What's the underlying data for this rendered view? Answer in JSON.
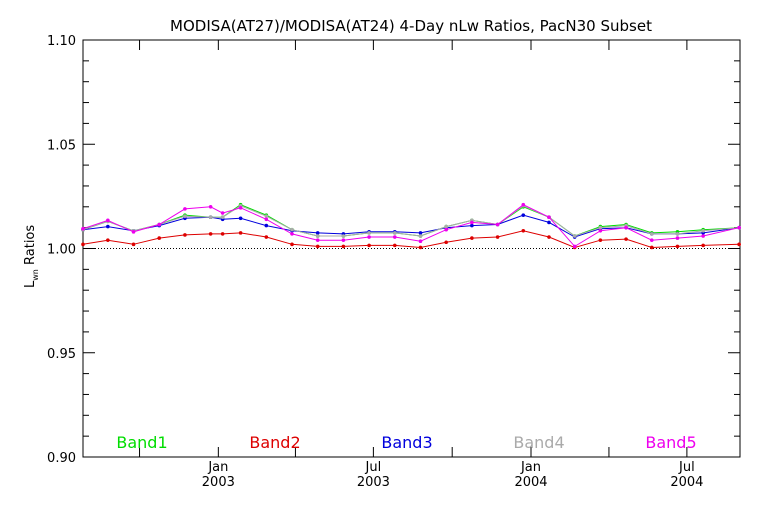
{
  "chart_data": {
    "type": "line",
    "title": "MODISA(AT27)/MODISA(AT24) 4-Day nLw Ratios, PacN30 Subset",
    "ylabel_main": "L",
    "ylabel_sub": "wn",
    "ylabel_rest": " Ratios",
    "ylim": [
      0.9,
      1.1
    ],
    "yticks": [
      "1.10",
      "1.05",
      "1.00",
      "0.95",
      "0.90"
    ],
    "ytick_values": [
      1.1,
      1.05,
      1.0,
      0.95,
      0.9
    ],
    "xlim": [
      "2002-07-27",
      "2004-09-01"
    ],
    "xticks": [
      {
        "date": "2003-01-01",
        "month": "Jan",
        "year": "2003"
      },
      {
        "date": "2003-07-01",
        "month": "Jul",
        "year": "2003"
      },
      {
        "date": "2004-01-01",
        "month": "Jan",
        "year": "2004"
      },
      {
        "date": "2004-07-01",
        "month": "Jul",
        "year": "2004"
      }
    ],
    "reference_line": 1.0,
    "x": [
      "2002-07-27",
      "2002-08-25",
      "2002-09-24",
      "2002-10-24",
      "2002-11-23",
      "2002-12-23",
      "2003-01-06",
      "2003-01-27",
      "2003-02-26",
      "2003-03-28",
      "2003-04-27",
      "2003-05-27",
      "2003-06-26",
      "2003-07-26",
      "2003-08-25",
      "2003-09-24",
      "2003-10-24",
      "2003-11-23",
      "2003-12-23",
      "2004-01-22",
      "2004-02-21",
      "2004-03-22",
      "2004-04-21",
      "2004-05-21",
      "2004-06-20",
      "2004-07-20",
      "2004-08-31"
    ],
    "series": [
      {
        "name": "Band1",
        "color": "#00dd00",
        "values": [
          1.009,
          1.013,
          1.0085,
          1.0115,
          1.016,
          1.015,
          1.015,
          1.021,
          1.016,
          1.009,
          1.006,
          1.006,
          1.0075,
          1.0075,
          1.006,
          1.0105,
          1.0135,
          1.0115,
          1.02,
          1.015,
          1.006,
          1.0105,
          1.0115,
          1.0075,
          1.008,
          1.009,
          1.01
        ]
      },
      {
        "name": "Band2",
        "color": "#dd0000",
        "values": [
          1.002,
          1.004,
          1.002,
          1.005,
          1.0065,
          1.007,
          1.007,
          1.0075,
          1.0055,
          1.002,
          1.001,
          1.001,
          1.0015,
          1.0015,
          1.0005,
          1.003,
          1.005,
          1.0055,
          1.0085,
          1.0055,
          1.0005,
          1.004,
          1.0045,
          1.0005,
          1.001,
          1.0015,
          1.002
        ]
      },
      {
        "name": "Band3",
        "color": "#0000dd",
        "values": [
          1.009,
          1.0105,
          1.0085,
          1.011,
          1.0145,
          1.015,
          1.014,
          1.0145,
          1.011,
          1.0085,
          1.0075,
          1.007,
          1.008,
          1.008,
          1.0075,
          1.01,
          1.011,
          1.0115,
          1.016,
          1.0125,
          1.0055,
          1.0095,
          1.01,
          1.007,
          1.007,
          1.0075,
          1.01
        ]
      },
      {
        "name": "Band4",
        "color": "#aaaaaa",
        "values": [
          1.009,
          1.013,
          1.0085,
          1.0115,
          1.0155,
          1.015,
          1.015,
          1.0205,
          1.0155,
          1.009,
          1.006,
          1.006,
          1.0075,
          1.0075,
          1.006,
          1.0105,
          1.0135,
          1.0115,
          1.0205,
          1.015,
          1.006,
          1.01,
          1.011,
          1.007,
          1.007,
          1.0085,
          1.01
        ]
      },
      {
        "name": "Band5",
        "color": "#ee00ee",
        "values": [
          1.0095,
          1.0135,
          1.008,
          1.0115,
          1.019,
          1.02,
          1.017,
          1.0195,
          1.014,
          1.007,
          1.004,
          1.004,
          1.0055,
          1.0055,
          1.0035,
          1.009,
          1.0125,
          1.0115,
          1.021,
          1.015,
          1.001,
          1.0085,
          1.01,
          1.004,
          1.005,
          1.006,
          1.01
        ]
      }
    ],
    "grid": false,
    "legend_position": "bottom, inside plot"
  }
}
